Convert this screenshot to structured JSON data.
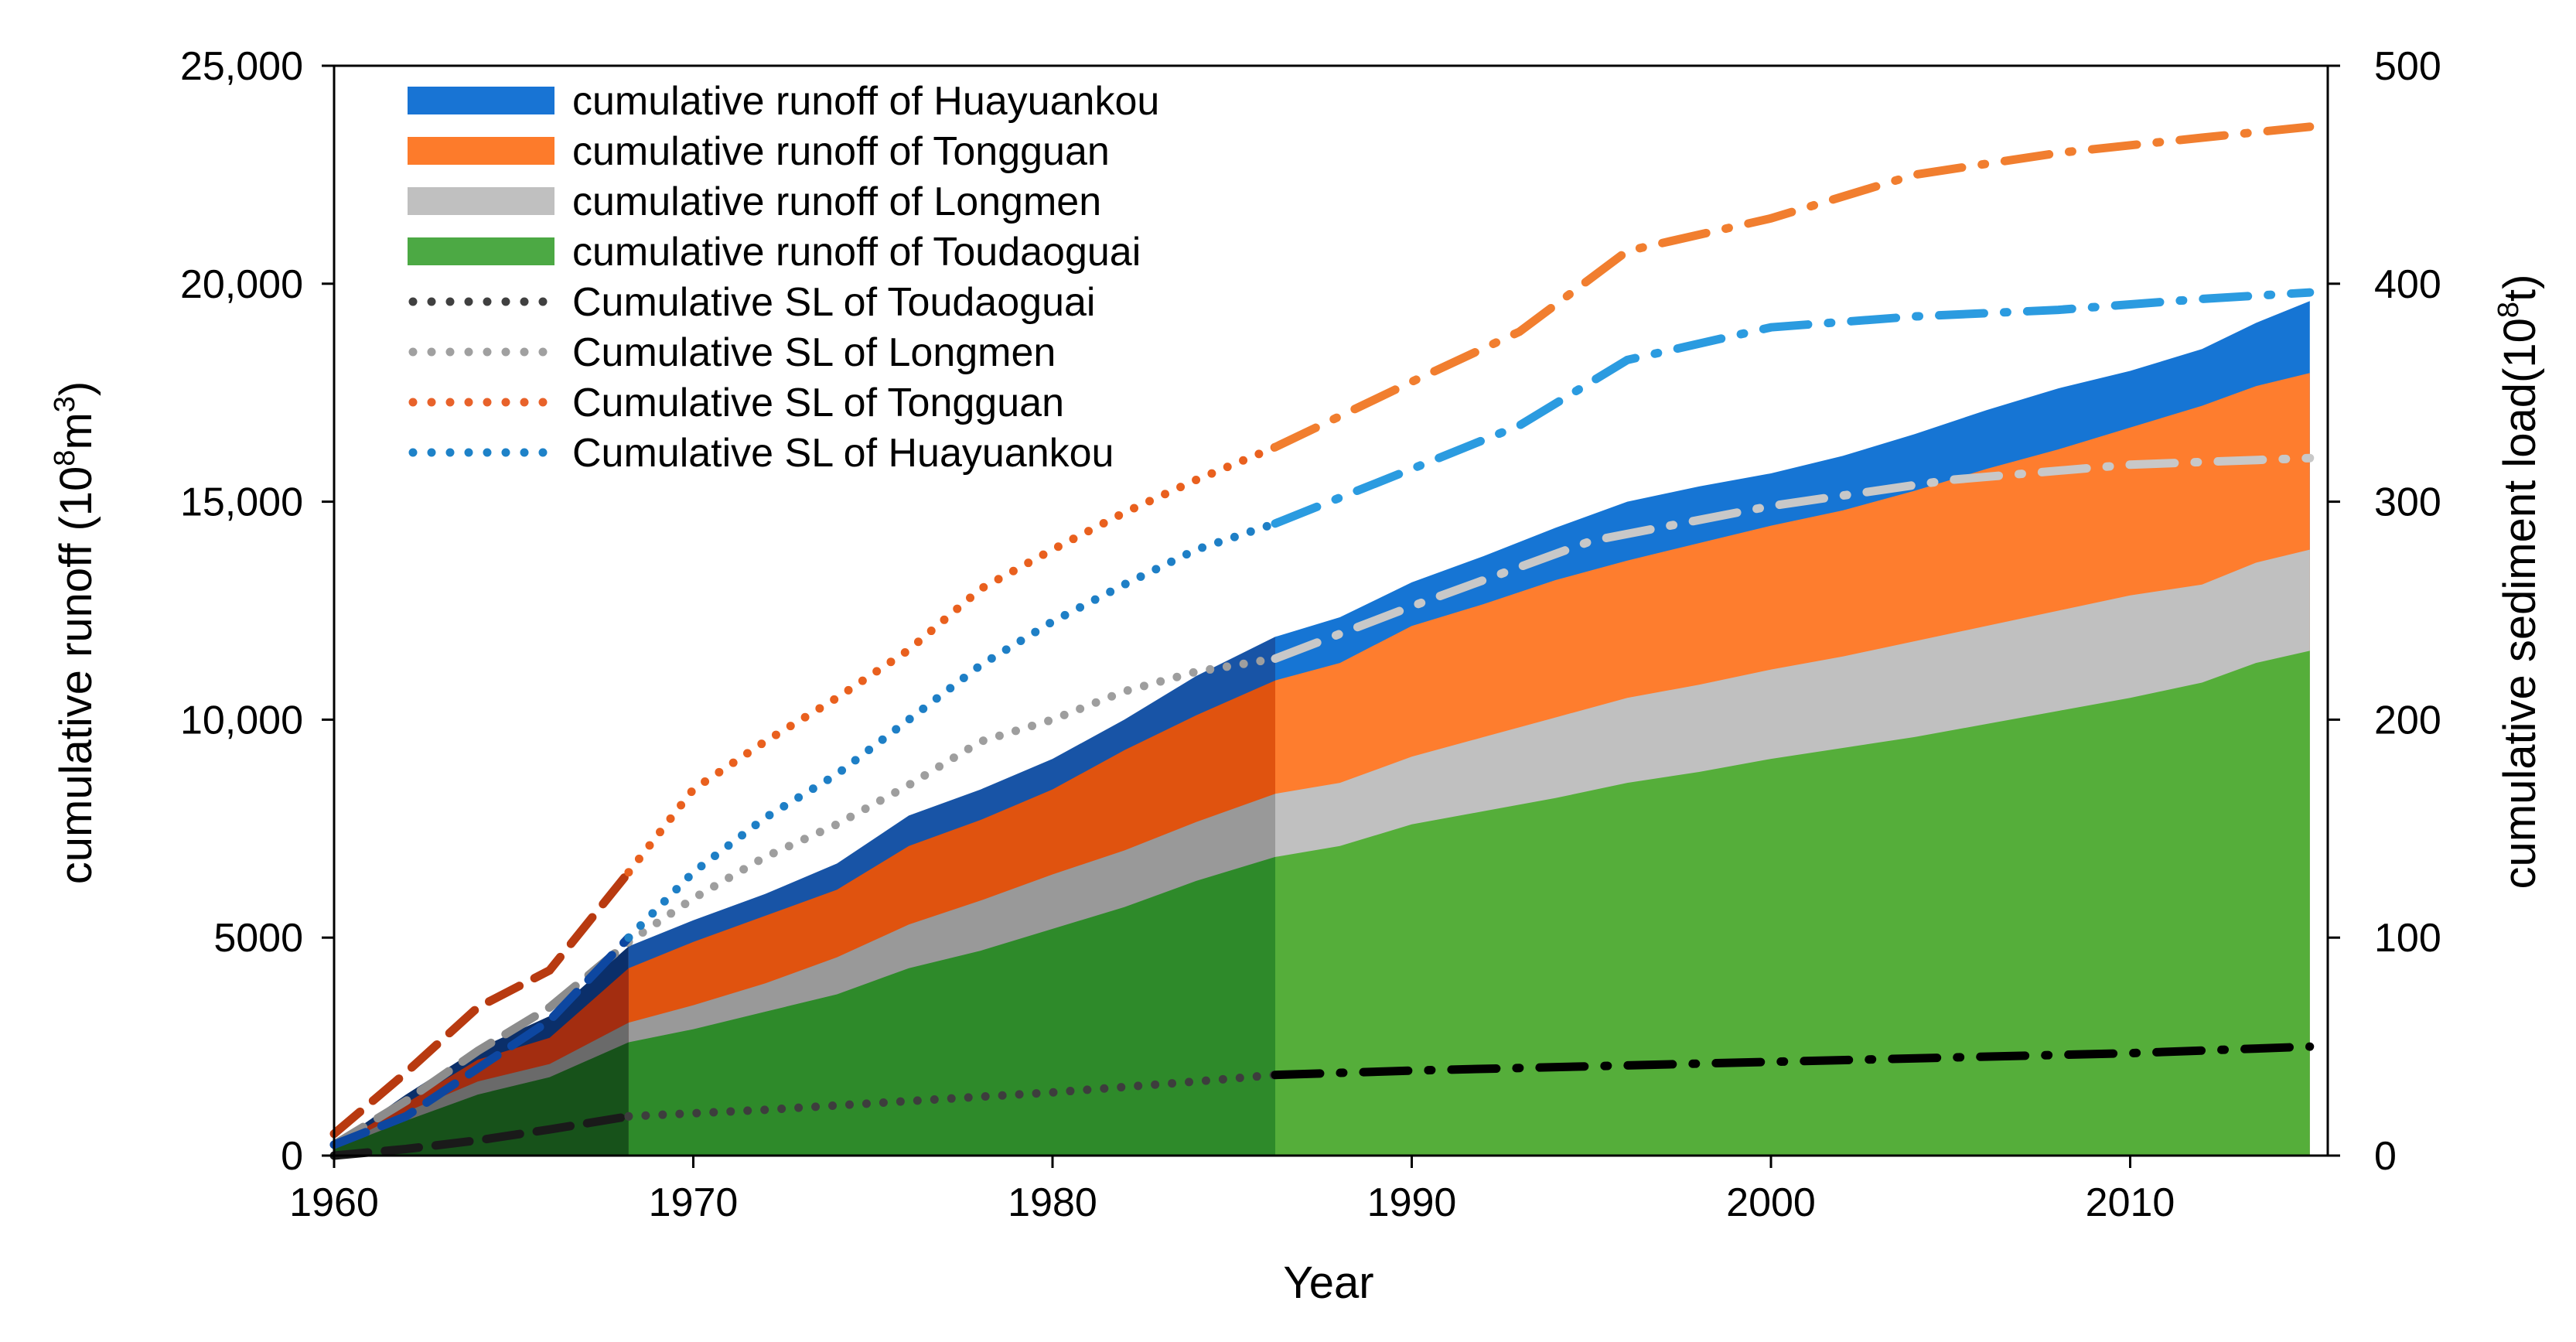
{
  "chart_data": {
    "type": "area",
    "title": "",
    "xlabel": "Year",
    "ylabel_left": "cumulative runoff (10^8m^3)",
    "ylabel_right": "cumulative sediment load(10^8t)",
    "xlim": [
      1960,
      2015.5
    ],
    "ylim_left": [
      0,
      25000
    ],
    "ylim_right": [
      0,
      500
    ],
    "x_ticks": [
      1960,
      1970,
      1980,
      1990,
      2000,
      2010
    ],
    "x_tick_labels": [
      "1960",
      "1970",
      "1980",
      "1990",
      "2000",
      "2010"
    ],
    "y_left_ticks": [
      0,
      5000,
      10000,
      15000,
      20000,
      25000
    ],
    "y_left_tick_labels": [
      "0",
      "5000",
      "10,000",
      "15,000",
      "20,000",
      "25,000"
    ],
    "y_right_ticks": [
      0,
      100,
      200,
      300,
      400,
      500
    ],
    "y_right_tick_labels": [
      "0",
      "100",
      "200",
      "300",
      "400",
      "500"
    ],
    "period_breaks": [
      1968.2,
      1986.2
    ],
    "legend_position": "top-left",
    "legend": [
      {
        "label": "cumulative runoff of Huayuankou",
        "kind": "area",
        "color": "#1874d4"
      },
      {
        "label": "cumulative runoff of Tongguan",
        "kind": "area",
        "color": "#fd7b2b"
      },
      {
        "label": "cumulative runoff of Longmen",
        "kind": "area",
        "color": "#c0c0c0"
      },
      {
        "label": "cumulative runoff of Toudaoguai",
        "kind": "area",
        "color": "#4ca944"
      },
      {
        "label": "Cumulative SL of Toudaoguai",
        "kind": "dots",
        "color": "#404040"
      },
      {
        "label": "Cumulative SL of Longmen",
        "kind": "dots",
        "color": "#a0a0a0"
      },
      {
        "label": "Cumulative SL of Tongguan",
        "kind": "dots",
        "color": "#e8622a"
      },
      {
        "label": "Cumulative SL of Huayuankou",
        "kind": "dots",
        "color": "#1e82c8"
      }
    ],
    "runoff_x": [
      1960,
      1962,
      1964,
      1966,
      1968.2,
      1970,
      1972,
      1974,
      1976,
      1978,
      1980,
      1982,
      1984,
      1986.2,
      1988,
      1990,
      1992,
      1994,
      1996,
      1998,
      2000,
      2002,
      2004,
      2006,
      2008,
      2010,
      2012,
      2013.5,
      2015
    ],
    "runoff_series": [
      {
        "name": "Toudaoguai",
        "color": "#55ae3a",
        "period_colors": [
          "#17521a",
          "#2e8a2a",
          "#55ae3a"
        ],
        "values": [
          150,
          800,
          1400,
          1800,
          2600,
          2900,
          3300,
          3700,
          4300,
          4700,
          5200,
          5700,
          6300,
          6850,
          7100,
          7600,
          7900,
          8200,
          8550,
          8800,
          9100,
          9350,
          9600,
          9900,
          10200,
          10500,
          10850,
          11300,
          11580
        ]
      },
      {
        "name": "Longmen",
        "color": "#c0c0c0",
        "period_colors": [
          "#6a6a6a",
          "#999999",
          "#c0c0c0"
        ],
        "values": [
          180,
          1000,
          1700,
          2100,
          3050,
          3450,
          3950,
          4550,
          5300,
          5850,
          6450,
          7000,
          7650,
          8300,
          8550,
          9150,
          9600,
          10050,
          10500,
          10800,
          11150,
          11450,
          11800,
          12150,
          12500,
          12850,
          13100,
          13600,
          13900
        ]
      },
      {
        "name": "Tongguan",
        "color": "#fe7d2e",
        "period_colors": [
          "#a32d10",
          "#e0530f",
          "#fe7d2e"
        ],
        "values": [
          220,
          1200,
          2200,
          2700,
          4300,
          4900,
          5500,
          6100,
          7100,
          7700,
          8400,
          9300,
          10100,
          10900,
          11300,
          12150,
          12650,
          13200,
          13650,
          14050,
          14450,
          14800,
          15250,
          15750,
          16200,
          16700,
          17200,
          17650,
          17950
        ]
      },
      {
        "name": "Huayuankou",
        "color": "#1675d4",
        "period_colors": [
          "#0b2f6a",
          "#1854a6",
          "#1675d4"
        ],
        "values": [
          250,
          1400,
          2450,
          3200,
          4800,
          5400,
          6000,
          6700,
          7800,
          8400,
          9100,
          10000,
          11000,
          11900,
          12350,
          13150,
          13750,
          14400,
          15000,
          15350,
          15650,
          16050,
          16550,
          17100,
          17600,
          18000,
          18500,
          19100,
          19600
        ]
      }
    ],
    "sediment_series": [
      {
        "name": "Toudaoguai",
        "dot_color": "#3d3d3d",
        "pre_color": "#1a1a1a",
        "post_color": "#000000",
        "pre_x": [
          1960,
          1962,
          1964,
          1966,
          1968.2
        ],
        "pre_y": [
          0,
          3,
          7,
          12,
          18
        ],
        "x": [
          1968.2,
          1972,
          1976,
          1980,
          1984,
          1986.2
        ],
        "y": [
          18,
          21,
          25,
          29,
          34,
          37
        ],
        "post_x": [
          1986.2,
          1990,
          1995,
          2000,
          2005,
          2010,
          2015
        ],
        "post_y": [
          37,
          39,
          41,
          43,
          45,
          47,
          50
        ]
      },
      {
        "name": "Longmen",
        "dot_color": "#9e9e9e",
        "pre_color": "#8c8c8c",
        "post_color": "#c8c8c8",
        "pre_x": [
          1960,
          1962,
          1964,
          1966,
          1968.2
        ],
        "pre_y": [
          5,
          25,
          48,
          68,
          98
        ],
        "x": [
          1968.2,
          1970,
          1972,
          1974,
          1976,
          1978,
          1980,
          1982,
          1984,
          1986.2
        ],
        "y": [
          98,
          118,
          137,
          152,
          170,
          190,
          200,
          213,
          222,
          228
        ],
        "post_x": [
          1986.2,
          1990,
          1995,
          2000,
          2005,
          2010,
          2015
        ],
        "post_y": [
          228,
          252,
          282,
          298,
          310,
          317,
          320
        ]
      },
      {
        "name": "Tongguan",
        "dot_color": "#e9601e",
        "pre_color": "#b83a10",
        "post_color": "#f17e2f",
        "pre_x": [
          1960,
          1962,
          1964,
          1966,
          1968.2
        ],
        "pre_y": [
          10,
          38,
          68,
          85,
          130
        ],
        "x": [
          1968.2,
          1970,
          1972,
          1974,
          1976,
          1978,
          1980,
          1982,
          1984,
          1986.2
        ],
        "y": [
          130,
          168,
          190,
          210,
          232,
          260,
          278,
          295,
          310,
          325
        ],
        "post_x": [
          1986.2,
          1990,
          1993,
          1996,
          2000,
          2004,
          2008,
          2012,
          2015
        ],
        "post_y": [
          325,
          355,
          378,
          415,
          430,
          450,
          460,
          467,
          472
        ]
      },
      {
        "name": "Huayuankou",
        "dot_color": "#1e7fc6",
        "pre_color": "#0d47a1",
        "post_color": "#2b9be0",
        "pre_x": [
          1960,
          1962,
          1964,
          1966,
          1968.2
        ],
        "pre_y": [
          5,
          18,
          40,
          62,
          100
        ],
        "x": [
          1968.2,
          1970,
          1972,
          1974,
          1976,
          1978,
          1980,
          1982,
          1984,
          1986.2
        ],
        "y": [
          100,
          130,
          155,
          175,
          200,
          225,
          245,
          262,
          278,
          290
        ],
        "post_x": [
          1986.2,
          1990,
          1993,
          1996,
          2000,
          2004,
          2008,
          2012,
          2015
        ],
        "post_y": [
          290,
          315,
          335,
          365,
          380,
          385,
          388,
          393,
          396
        ]
      }
    ]
  }
}
